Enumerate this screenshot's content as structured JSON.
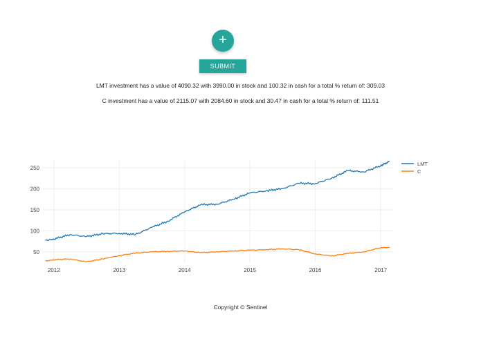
{
  "fab": {
    "icon": "plus-icon",
    "symbol": "+",
    "color": "#26a69a"
  },
  "form": {
    "submit_label": "SUBMIT"
  },
  "results": [
    {
      "text": "LMT investment has a value of 4090.32 with 3990.00 in stock and 100.32 in cash for a total % return of: 309.03"
    },
    {
      "text": "C investment has a value of 2115.07 with 2084.60 in stock and 30.47 in cash for a total % return of: 111.51"
    }
  ],
  "footer": {
    "text": "Copyright © Sentinel"
  },
  "chart_data": {
    "type": "line",
    "grid": true,
    "legend_position": "top-right",
    "x": [
      "2011-11-15",
      "2012-01-01",
      "2012-04-01",
      "2012-07-01",
      "2012-10-01",
      "2013-01-01",
      "2013-04-01",
      "2013-07-01",
      "2013-10-01",
      "2014-01-01",
      "2014-04-01",
      "2014-07-01",
      "2014-10-01",
      "2015-01-01",
      "2015-04-01",
      "2015-07-01",
      "2015-10-01",
      "2016-01-01",
      "2016-04-01",
      "2016-07-01",
      "2016-10-01",
      "2017-01-01",
      "2017-02-20"
    ],
    "xticks": [
      "2012",
      "2013",
      "2014",
      "2015",
      "2016",
      "2017"
    ],
    "xlim": [
      "2011-11-01",
      "2017-03-15"
    ],
    "yticks": [
      50,
      100,
      150,
      200,
      250
    ],
    "ylim": [
      25,
      268
    ],
    "series": [
      {
        "name": "LMT",
        "color": "#1f77b4",
        "values": [
          77,
          80,
          91,
          86,
          93,
          94,
          91,
          108,
          123,
          145,
          162,
          163,
          175,
          190,
          195,
          200,
          213,
          212,
          225,
          243,
          240,
          255,
          265
        ]
      },
      {
        "name": "C",
        "color": "#ff7f0e",
        "values": [
          28,
          31,
          33,
          26,
          33,
          41,
          47,
          50,
          51,
          52,
          48,
          50,
          52,
          54,
          55,
          57,
          55,
          45,
          40,
          46,
          50,
          60,
          60
        ]
      }
    ]
  }
}
